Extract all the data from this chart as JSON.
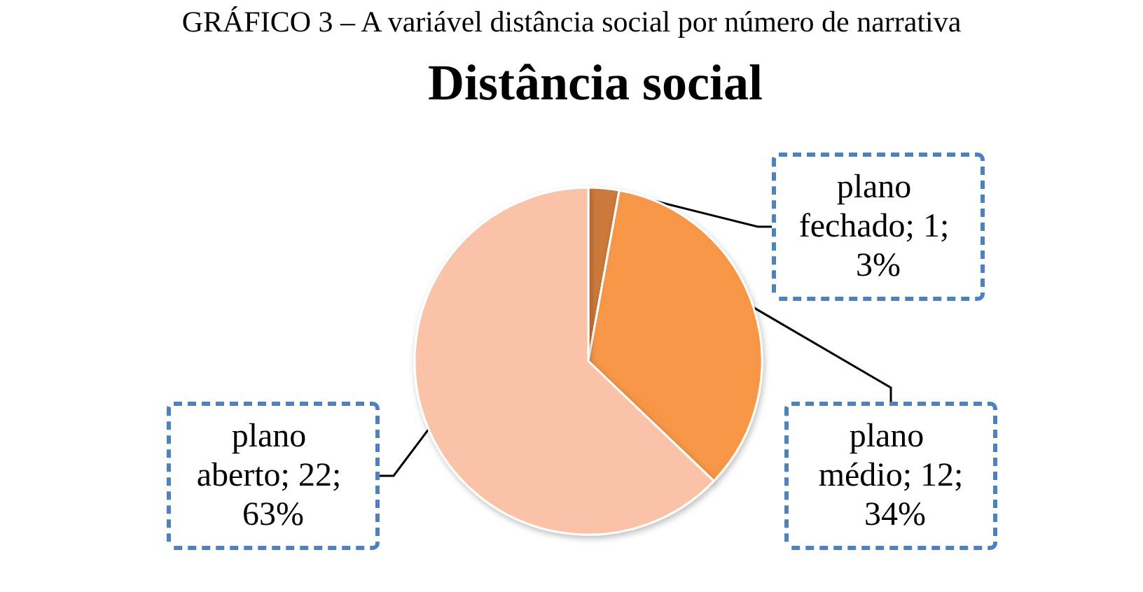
{
  "chart_data": {
    "type": "pie",
    "title": "Distância social",
    "annotations": [
      "GRÁFICO 3 – A variável distância social por número de narrativa"
    ],
    "categories": [
      "plano fechado",
      "plano médio",
      "plano aberto"
    ],
    "values": [
      1,
      12,
      22
    ],
    "value_labels": [
      "1; 3%",
      "12; 34%",
      "22; 63%"
    ],
    "colors": [
      "#cc7a3a",
      "#f79646",
      "#fac2a6"
    ],
    "legend": false
  }
}
